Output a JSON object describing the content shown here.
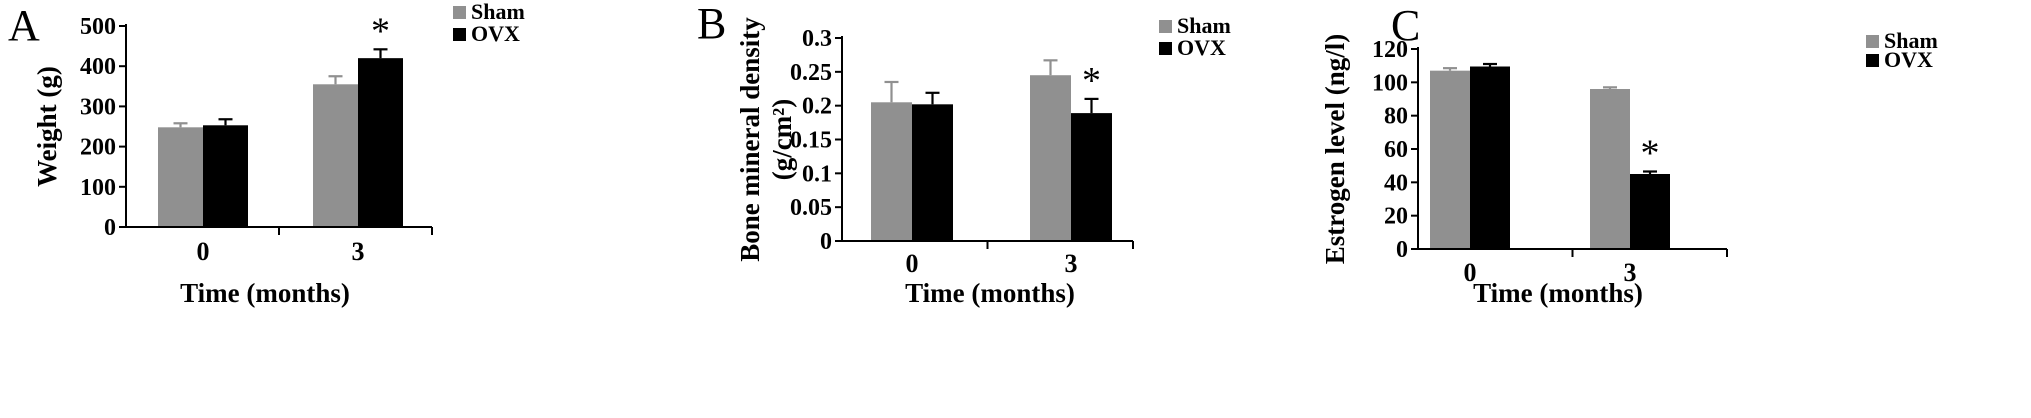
{
  "figure": {
    "colors": {
      "sham": "#909090",
      "ovx": "#000000"
    },
    "panels": [
      {
        "letter": "A"
      },
      {
        "letter": "B"
      },
      {
        "letter": "C"
      }
    ]
  },
  "chart_data": [
    {
      "type": "bar",
      "panel": "A",
      "title": "",
      "xlabel": "Time (months)",
      "ylabel": "Weight (g)",
      "categories": [
        "0",
        "3"
      ],
      "ylim": [
        0,
        500
      ],
      "yticks": [
        "0",
        "100",
        "200",
        "300",
        "400",
        "500"
      ],
      "legend": {
        "position": "top-right"
      },
      "series": [
        {
          "name": "Sham",
          "values": [
            248,
            355
          ],
          "errors": [
            10,
            20
          ]
        },
        {
          "name": "OVX",
          "values": [
            253,
            420
          ],
          "errors": [
            15,
            22
          ]
        }
      ],
      "annotations": [
        {
          "text": "*",
          "category": "3",
          "series": "OVX"
        }
      ]
    },
    {
      "type": "bar",
      "panel": "B",
      "title": "",
      "xlabel": "Time (months)",
      "ylabel": "Bone mineral density",
      "ylabel_line2": "(g/cm²)",
      "categories": [
        "0",
        "3"
      ],
      "ylim": [
        0,
        0.3
      ],
      "yticks": [
        "0",
        "0.05",
        "0.1",
        "0.15",
        "0.2",
        "0.25",
        "0.3"
      ],
      "legend": {
        "position": "top-right"
      },
      "series": [
        {
          "name": "Sham",
          "values": [
            0.205,
            0.245
          ],
          "errors": [
            0.03,
            0.022
          ]
        },
        {
          "name": "OVX",
          "values": [
            0.202,
            0.189
          ],
          "errors": [
            0.017,
            0.021
          ]
        }
      ],
      "annotations": [
        {
          "text": "*",
          "category": "3",
          "series": "OVX"
        }
      ]
    },
    {
      "type": "bar",
      "panel": "C",
      "title": "",
      "xlabel": "Time (months)",
      "ylabel": "Estrogen level (ng/l)",
      "categories": [
        "0",
        "3"
      ],
      "ylim": [
        0,
        120
      ],
      "yticks": [
        "0",
        "20",
        "40",
        "60",
        "80",
        "100",
        "120"
      ],
      "legend": {
        "position": "top-right"
      },
      "series": [
        {
          "name": "Sham",
          "values": [
            107,
            96
          ],
          "errors": [
            1.5,
            1
          ]
        },
        {
          "name": "OVX",
          "values": [
            109.5,
            45
          ],
          "errors": [
            1.5,
            1.5
          ]
        }
      ],
      "annotations": [
        {
          "text": "*",
          "category": "3",
          "series": "OVX"
        }
      ]
    }
  ]
}
